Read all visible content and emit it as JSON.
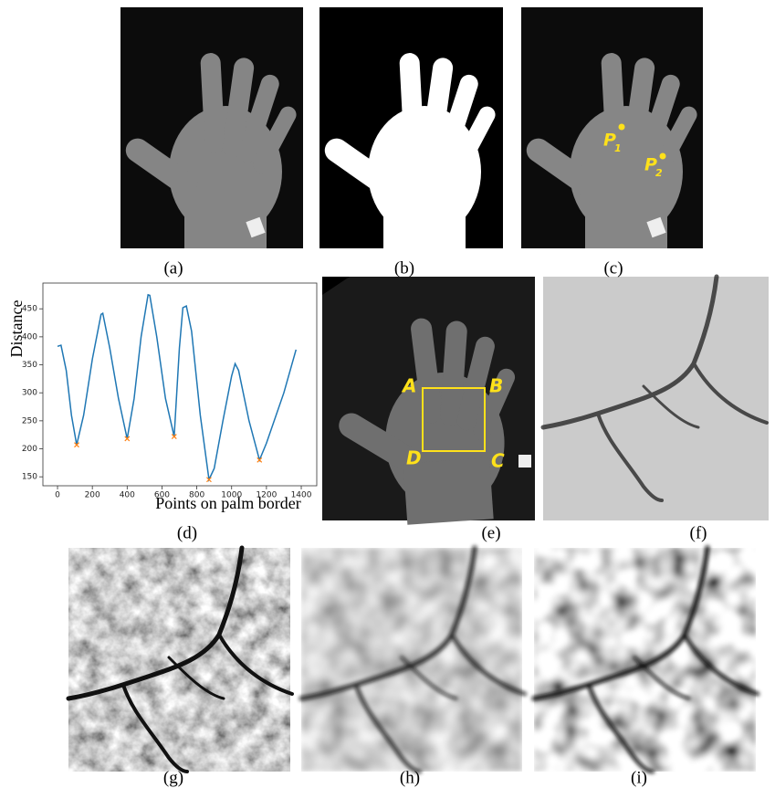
{
  "captions": [
    "(a)",
    "(b)",
    "(c)",
    "(d)",
    "(e)",
    "(f)",
    "(g)",
    "(h)",
    "(i)"
  ],
  "annotations": {
    "c": [
      {
        "letter": "P",
        "subscript": "1"
      },
      {
        "letter": "P",
        "subscript": "2"
      }
    ],
    "e": [
      "A",
      "B",
      "C",
      "D"
    ]
  },
  "chart_data": {
    "type": "line",
    "xlabel": "Points on palm border",
    "ylabel": "Distance",
    "xlim": [
      -84,
      1489
    ],
    "ylim": [
      134,
      496
    ],
    "xticks": [
      0,
      200,
      400,
      600,
      800,
      1000,
      1200,
      1400
    ],
    "yticks": [
      150,
      200,
      250,
      300,
      350,
      400,
      450
    ],
    "series": [
      {
        "color": "#1f77b4",
        "x": [
          0,
          20,
          50,
          80,
          110,
          150,
          200,
          250,
          260,
          300,
          350,
          400,
          440,
          480,
          520,
          530,
          570,
          620,
          670,
          700,
          720,
          740,
          770,
          820,
          870,
          900,
          950,
          1000,
          1020,
          1040,
          1100,
          1160,
          1200,
          1300,
          1370
        ],
        "values": [
          383,
          385,
          340,
          260,
          207,
          260,
          360,
          440,
          442,
          380,
          290,
          218,
          290,
          400,
          475,
          474,
          400,
          290,
          222,
          380,
          452,
          455,
          410,
          260,
          145,
          165,
          250,
          330,
          352,
          340,
          250,
          180,
          210,
          300,
          377
        ]
      },
      {
        "type": "scatter",
        "color": "#ff7f0e",
        "x": [
          110,
          400,
          670,
          870,
          1160
        ],
        "values": [
          207,
          218,
          222,
          145,
          180
        ]
      }
    ]
  }
}
